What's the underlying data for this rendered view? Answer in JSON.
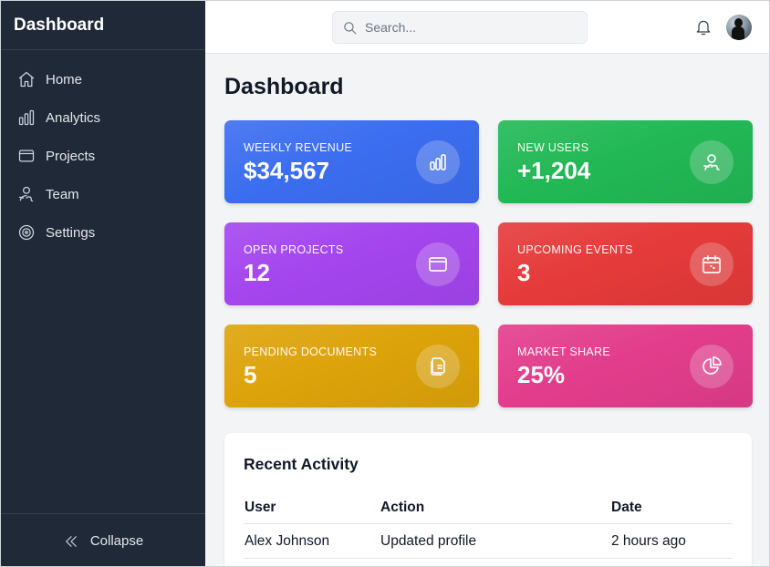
{
  "sidebar": {
    "brand": "Dashboard",
    "items": [
      {
        "label": "Home",
        "icon": "home-icon"
      },
      {
        "label": "Analytics",
        "icon": "bar-chart-icon"
      },
      {
        "label": "Projects",
        "icon": "folder-icon"
      },
      {
        "label": "Team",
        "icon": "users-icon"
      },
      {
        "label": "Settings",
        "icon": "gear-icon"
      }
    ],
    "collapse_label": "Collapse"
  },
  "topbar": {
    "search_placeholder": "Search...",
    "search_value": ""
  },
  "main": {
    "title": "Dashboard",
    "cards": [
      {
        "label": "WEEKLY REVENUE",
        "value": "$34,567",
        "color": "#3b6df0",
        "icon": "bar-chart-icon"
      },
      {
        "label": "NEW USERS",
        "value": "+1,204",
        "color": "#22b855",
        "icon": "users-icon"
      },
      {
        "label": "OPEN PROJECTS",
        "value": "12",
        "color": "#a445ee",
        "icon": "folder-icon"
      },
      {
        "label": "UPCOMING EVENTS",
        "value": "3",
        "color": "#e53a3a",
        "icon": "calendar-icon"
      },
      {
        "label": "PENDING DOCUMENTS",
        "value": "5",
        "color": "#dda30a",
        "icon": "documents-icon"
      },
      {
        "label": "MARKET SHARE",
        "value": "25%",
        "color": "#e23d8c",
        "icon": "pie-chart-icon"
      }
    ],
    "activity": {
      "title": "Recent Activity",
      "columns": [
        "User",
        "Action",
        "Date"
      ],
      "rows": [
        [
          "Alex Johnson",
          "Updated profile",
          "2 hours ago"
        ]
      ]
    }
  }
}
